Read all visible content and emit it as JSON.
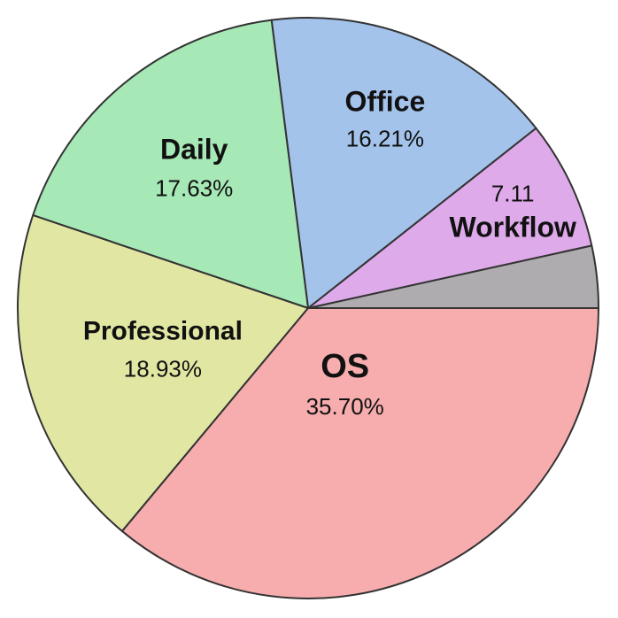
{
  "chart_data": {
    "type": "pie",
    "title": "",
    "start_angle_deg": 0,
    "direction": "counterclockwise",
    "slices": [
      {
        "name": "",
        "value": 3.42,
        "value_label": "",
        "color": "#aeacae"
      },
      {
        "name": "Workflow",
        "value": 7.11,
        "value_label": "7.11",
        "color": "#deaaea"
      },
      {
        "name": "Office",
        "value": 16.21,
        "value_label": "16.21%",
        "color": "#a4c3eb"
      },
      {
        "name": "Daily",
        "value": 17.63,
        "value_label": "17.63%",
        "color": "#a6e8b6"
      },
      {
        "name": "Professional",
        "value": 18.93,
        "value_label": "18.93%",
        "color": "#e2e6a3"
      },
      {
        "name": "OS",
        "value": 35.7,
        "value_label": "35.70%",
        "color": "#f7adae"
      }
    ]
  }
}
